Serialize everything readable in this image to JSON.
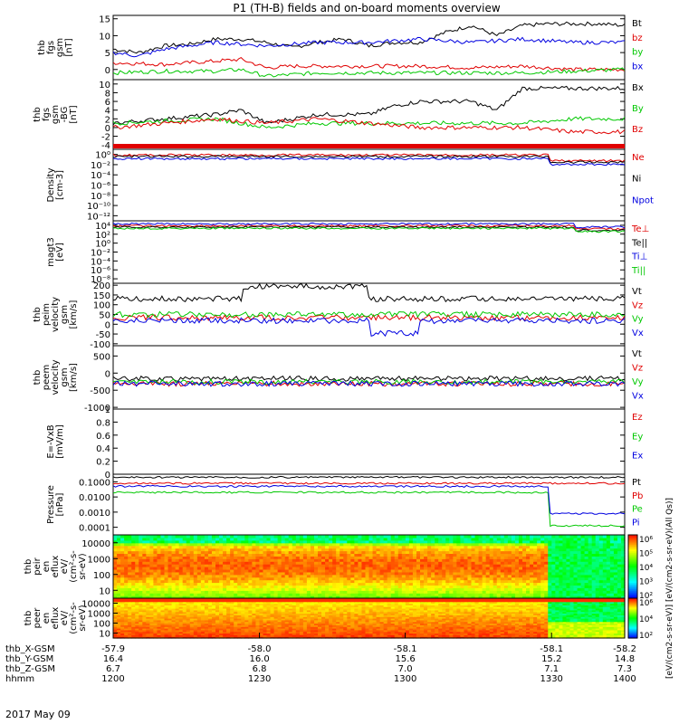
{
  "title": "P1 (TH-B) fields and on-board moments overview",
  "date_label": "2017 May 09",
  "colors": {
    "black": "#000000",
    "red": "#e00000",
    "green": "#00c800",
    "blue": "#0000e0"
  },
  "chart_data": [
    {
      "type": "line",
      "id": "fgs",
      "ylabel_lines": [
        "thb",
        "fgs",
        "gsm",
        "[nT]"
      ],
      "yticks": [
        0,
        5,
        10,
        15
      ],
      "ylim": [
        -3,
        16
      ],
      "legend": [
        {
          "name": "Bt",
          "color": "black"
        },
        {
          "name": "bz",
          "color": "red"
        },
        {
          "name": "by",
          "color": "green"
        },
        {
          "name": "bx",
          "color": "blue"
        }
      ],
      "series": [
        {
          "name": "Bt",
          "color": "black",
          "x": [
            0,
            0.05,
            0.1,
            0.15,
            0.2,
            0.25,
            0.3,
            0.35,
            0.4,
            0.45,
            0.5,
            0.55,
            0.6,
            0.65,
            0.7,
            0.75,
            0.8,
            0.85,
            0.9,
            0.95,
            1.0
          ],
          "y": [
            6,
            5,
            7,
            7.5,
            9,
            9,
            8,
            6.5,
            8,
            9,
            7,
            8,
            8,
            11,
            13,
            10,
            13,
            13.5,
            13.5,
            13.5,
            13
          ]
        },
        {
          "name": "bz",
          "color": "red",
          "x": [
            0,
            0.1,
            0.2,
            0.25,
            0.3,
            0.35,
            0.4,
            0.5,
            0.6,
            0.7,
            0.8,
            0.9,
            1.0
          ],
          "y": [
            2,
            1.5,
            2.5,
            3,
            0.5,
            1,
            1,
            1,
            1,
            0.5,
            1,
            0,
            0
          ]
        },
        {
          "name": "by",
          "color": "green",
          "x": [
            0,
            0.1,
            0.2,
            0.25,
            0.3,
            0.4,
            0.5,
            0.6,
            0.7,
            0.8,
            0.9,
            1.0
          ],
          "y": [
            -1,
            -0.5,
            -0.5,
            0,
            -2,
            -1,
            -1,
            -1,
            -1,
            -1,
            -0.5,
            0
          ]
        },
        {
          "name": "bx",
          "color": "blue",
          "x": [
            0,
            0.05,
            0.1,
            0.2,
            0.3,
            0.4,
            0.5,
            0.6,
            0.7,
            0.8,
            0.9,
            1.0
          ],
          "y": [
            5,
            4,
            6,
            8,
            7,
            8,
            8,
            9,
            8,
            9,
            8,
            8
          ]
        }
      ]
    },
    {
      "type": "line",
      "id": "fgs_nonlog",
      "ylabel_lines": [
        "thb",
        "fgs",
        "gsm",
        "-BG",
        "[nT]"
      ],
      "yticks": [
        -4,
        -2,
        0,
        2,
        4,
        6,
        8,
        10
      ],
      "ylim": [
        -5,
        11
      ],
      "legend": [
        {
          "name": "Bx",
          "color": "black"
        },
        {
          "name": "By",
          "color": "green"
        },
        {
          "name": "Bz",
          "color": "red"
        }
      ],
      "series": [
        {
          "name": "Bx",
          "color": "black",
          "x": [
            0,
            0.1,
            0.2,
            0.25,
            0.3,
            0.4,
            0.5,
            0.55,
            0.6,
            0.7,
            0.75,
            0.8,
            0.85,
            0.9,
            1.0
          ],
          "y": [
            1,
            2,
            3,
            4,
            1,
            3,
            3,
            5,
            6,
            6,
            4,
            9,
            9,
            9,
            9
          ]
        },
        {
          "name": "By",
          "color": "green",
          "x": [
            0,
            0.1,
            0.2,
            0.3,
            0.4,
            0.5,
            0.6,
            0.7,
            0.8,
            0.9,
            1.0
          ],
          "y": [
            1,
            1.5,
            2,
            0,
            1,
            1,
            1,
            1,
            1,
            2,
            2
          ]
        },
        {
          "name": "Bz",
          "color": "red",
          "x": [
            0,
            0.1,
            0.2,
            0.3,
            0.4,
            0.5,
            0.6,
            0.7,
            0.8,
            0.9,
            1.0
          ],
          "y": [
            0,
            1,
            2,
            1,
            2,
            1,
            0,
            0,
            0,
            -1,
            -1
          ]
        }
      ]
    },
    {
      "type": "line",
      "id": "density",
      "ylabel_lines": [
        "Density",
        "[cm-3]"
      ],
      "yticks": [
        "10⁻¹²",
        "10⁻¹⁰",
        "10⁻⁸",
        "10⁻⁶",
        "10⁻⁴",
        "10⁻²",
        "10⁰"
      ],
      "legend": [
        {
          "name": "Ne",
          "color": "red"
        },
        {
          "name": "Ni",
          "color": "black"
        },
        {
          "name": "Npot",
          "color": "blue"
        }
      ]
    },
    {
      "type": "line",
      "id": "temperature",
      "ylabel_lines": [
        "magt3",
        "[eV]"
      ],
      "yticks": [
        "10⁻⁸",
        "10⁻⁶",
        "10⁻⁴",
        "10⁻²",
        "10⁰",
        "10²",
        "10⁴"
      ],
      "legend": [
        {
          "name": "Te⊥",
          "color": "red"
        },
        {
          "name": "Te||",
          "color": "black"
        },
        {
          "name": "Ti⊥",
          "color": "blue"
        },
        {
          "name": "Ti||",
          "color": "green"
        }
      ]
    },
    {
      "type": "line",
      "id": "peim",
      "ylabel_lines": [
        "thb",
        "peim",
        "velocity",
        "gsm",
        "[km/s]"
      ],
      "yticks": [
        -100,
        -50,
        0,
        50,
        100,
        150,
        200
      ],
      "ylim": [
        -110,
        210
      ],
      "legend": [
        {
          "name": "Vt",
          "color": "black"
        },
        {
          "name": "Vz",
          "color": "red"
        },
        {
          "name": "Vy",
          "color": "green"
        },
        {
          "name": "Vx",
          "color": "blue"
        }
      ]
    },
    {
      "type": "line",
      "id": "peem",
      "ylabel_lines": [
        "thb",
        "peem",
        "velocity",
        "gsm",
        "[km/s]"
      ],
      "yticks": [
        -1000,
        -500,
        0,
        500
      ],
      "ylim": [
        -1050,
        800
      ],
      "legend": [
        {
          "name": "Vt",
          "color": "black"
        },
        {
          "name": "Vz",
          "color": "red"
        },
        {
          "name": "Vy",
          "color": "green"
        },
        {
          "name": "Vx",
          "color": "blue"
        }
      ]
    },
    {
      "type": "line",
      "id": "efield",
      "ylabel_lines": [
        "E=-VxB",
        "[mV/m]"
      ],
      "yticks": [
        0.0,
        0.2,
        0.4,
        0.6,
        0.8,
        1.0
      ],
      "ylim": [
        0,
        1
      ],
      "legend": [
        {
          "name": "Ez",
          "color": "red"
        },
        {
          "name": "Ey",
          "color": "green"
        },
        {
          "name": "Ex",
          "color": "blue"
        }
      ]
    },
    {
      "type": "line",
      "id": "pressure",
      "ylabel_lines": [
        "Pressure",
        "[nPa]"
      ],
      "yticks": [
        "0.0001",
        "0.0010",
        "0.0100",
        "0.1000"
      ],
      "legend": [
        {
          "name": "Pt",
          "color": "black"
        },
        {
          "name": "Pb",
          "color": "red"
        },
        {
          "name": "Pe",
          "color": "green"
        },
        {
          "name": "Pi",
          "color": "blue"
        }
      ]
    },
    {
      "type": "heatmap",
      "id": "peir",
      "ylabel_lines": [
        "thb",
        "peir",
        "en",
        "eflux",
        "eV/",
        "(cm²-s-",
        "sr-eV)"
      ],
      "yticks": [
        "10",
        "100",
        "1000",
        "10000"
      ]
    },
    {
      "type": "heatmap",
      "id": "peer",
      "ylabel_lines": [
        "thb",
        "peer",
        "en",
        "eflux",
        "eV/",
        "(cm²-s-",
        "sr-eV)"
      ],
      "yticks": [
        "10",
        "100",
        "1000",
        "10000"
      ]
    }
  ],
  "colorbar": {
    "ticks_top": [
      "10⁶",
      "10⁵",
      "10⁴",
      "10³",
      "10²"
    ],
    "ticks_bottom": [
      "10⁶",
      "10⁴",
      "10²"
    ],
    "label": "[eV/(cm2-s-sr-eV)] [eV/(cm2-s-sr-eV)(All Qs)]"
  },
  "xaxis": {
    "rows": [
      {
        "label": "thb_X-GSM",
        "values": [
          "-57.9",
          "-58.0",
          "-58.1",
          "-58.1",
          "-58.2"
        ]
      },
      {
        "label": "thb_Y-GSM",
        "values": [
          "16.4",
          "16.0",
          "15.6",
          "15.2",
          "14.8"
        ]
      },
      {
        "label": "thb_Z-GSM",
        "values": [
          "6.7",
          "6.8",
          "7.0",
          "7.1",
          "7.3"
        ]
      },
      {
        "label": "hhmm",
        "values": [
          "1200",
          "1230",
          "1300",
          "1330",
          "1400"
        ]
      }
    ]
  }
}
